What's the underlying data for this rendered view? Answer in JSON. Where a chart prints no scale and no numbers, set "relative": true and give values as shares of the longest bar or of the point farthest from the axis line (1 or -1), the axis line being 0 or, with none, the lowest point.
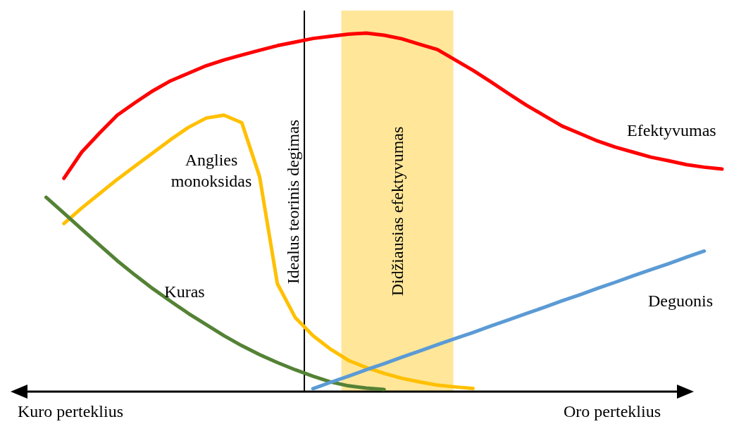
{
  "chart_data": {
    "type": "line",
    "relative": true,
    "tick_labels": false,
    "legend": false,
    "categories": [
      null,
      null,
      null,
      null,
      null,
      null,
      null,
      null,
      null,
      null,
      null,
      null,
      null,
      null,
      null,
      null,
      null,
      null,
      null,
      null,
      null,
      null,
      null,
      null,
      null,
      null,
      null,
      null,
      null,
      null,
      null,
      null,
      null,
      null,
      null,
      null,
      null,
      null,
      null,
      null,
      null
    ],
    "series": [
      {
        "name": "Efektyvumas",
        "color": "#ff0000",
        "values": [
          null,
          null,
          null,
          0.595,
          0.668,
          0.721,
          0.771,
          0.806,
          0.839,
          0.867,
          0.888,
          0.909,
          0.925,
          0.939,
          0.952,
          0.965,
          0.975,
          0.985,
          0.991,
          0.997,
          1,
          0.994,
          0.984,
          0.969,
          0.954,
          0.925,
          0.896,
          0.864,
          0.831,
          0.799,
          0.77,
          0.741,
          0.72,
          0.699,
          0.682,
          0.668,
          0.654,
          0.644,
          0.633,
          0.626,
          0.621
        ]
      },
      {
        "name": "Anglies monoksidas",
        "color": "#ffc000",
        "values": [
          null,
          null,
          null,
          0.469,
          0.512,
          0.552,
          0.592,
          0.629,
          0.666,
          0.703,
          0.737,
          0.763,
          0.771,
          0.75,
          0.6,
          0.301,
          0.207,
          0.156,
          0.118,
          0.087,
          0.067,
          0.051,
          0.037,
          0.027,
          0.018,
          0.013,
          0.009,
          null,
          null,
          null,
          null,
          null,
          null,
          null,
          null,
          null,
          null,
          null,
          null,
          null,
          null
        ]
      },
      {
        "name": "Kuras",
        "color": "#548235",
        "values": [
          null,
          null,
          0.542,
          0.498,
          0.453,
          0.409,
          0.365,
          0.325,
          0.287,
          0.252,
          0.218,
          0.187,
          0.156,
          0.128,
          0.103,
          0.081,
          0.061,
          0.043,
          0.027,
          0.016,
          0.01,
          0.006,
          null,
          null,
          null,
          null,
          null,
          null,
          null,
          null,
          null,
          null,
          null,
          null,
          null,
          null,
          null,
          null,
          null,
          null,
          null
        ]
      },
      {
        "name": "Deguonis",
        "color": "#5b9bd5",
        "values": [
          null,
          null,
          null,
          null,
          null,
          null,
          null,
          null,
          null,
          null,
          null,
          null,
          null,
          null,
          null,
          null,
          null,
          0.008,
          0.026,
          0.043,
          0.061,
          0.078,
          0.096,
          0.113,
          0.131,
          0.148,
          0.165,
          0.183,
          0.2,
          0.218,
          0.235,
          0.253,
          0.27,
          0.288,
          0.305,
          0.323,
          0.34,
          0.357,
          0.375,
          0.392,
          null
        ]
      }
    ],
    "ref_lines": [
      {
        "axis": "x",
        "label": "Idealus teorinis degimas",
        "color": "#000000"
      }
    ],
    "annotations": [
      "Kuro perteklius",
      "Oro perteklius",
      "Didžiausias efektyvumas"
    ]
  }
}
